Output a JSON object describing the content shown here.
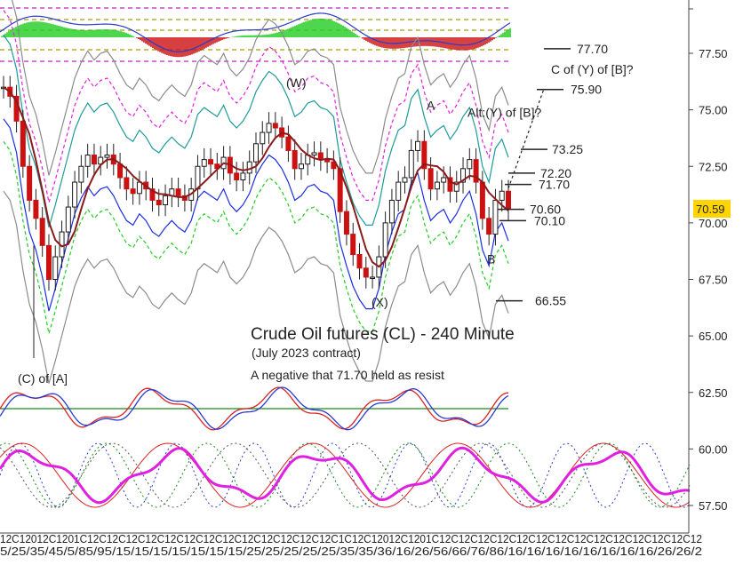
{
  "chart_data": {
    "type": "line",
    "title": "Crude Oil futures (CL) - 240 Minute",
    "subtitle": "(July 2023 contract)",
    "note": "A negative that 71.70 held as resist",
    "last_price": "70.59",
    "ylim": [
      56.5,
      80.0
    ],
    "y_ticks": [
      "77.50",
      "75.00",
      "72.50",
      "70.00",
      "67.50",
      "65.00",
      "62.50",
      "60.00",
      "57.50"
    ],
    "x_tick_labels": "5/25/35/45/5/85/95/15/15/15/15/15/15/15/25/25/25/25/25/35/35/36/16/26/56/66/76/86/16/16/16/16/16/16/16/16/26/26/2",
    "x_tick_top_labels": "12C12012C1201C12C12C12C12C12C12C12C12C12C12C12C12C12C1C12C12012C1201C12C12C12C12C12C12C12C12C12C12C12C12C12C12",
    "price_levels": [
      {
        "label": "77.70",
        "value": 77.7
      },
      {
        "label": "75.90",
        "value": 75.9
      },
      {
        "label": "73.25",
        "value": 73.25
      },
      {
        "label": "72.20",
        "value": 72.2
      },
      {
        "label": "71.70",
        "value": 71.7
      },
      {
        "label": "70.60",
        "value": 70.6
      },
      {
        "label": "70.10",
        "value": 70.1
      },
      {
        "label": "66.55",
        "value": 66.55
      }
    ],
    "wave_labels": [
      {
        "text": "(W)",
        "value": 76.0
      },
      {
        "text": "A",
        "value": 75.0
      },
      {
        "text": "Alt:(Y) of [B]?",
        "value": 74.7
      },
      {
        "text": "C of (Y) of [B]?",
        "value": 76.6
      },
      {
        "text": "B",
        "value": 68.2
      },
      {
        "text": "(X)",
        "value": 66.3
      },
      {
        "text": "(C) of [A]",
        "value": 63.3
      }
    ],
    "series": [
      {
        "name": "",
        "values": [
          76.0,
          75.6,
          74.5,
          72.5,
          71.0,
          70.2,
          69.0,
          67.5,
          68.5,
          69.6,
          70.7,
          71.8,
          72.5,
          73.0,
          72.6,
          72.9,
          73.0,
          72.6,
          72.0,
          71.5,
          71.3,
          71.8,
          71.5,
          71.0,
          70.8,
          71.2,
          71.5,
          71.2,
          71.0,
          71.5,
          72.5,
          72.8,
          72.6,
          72.4,
          72.9,
          72.2,
          71.9,
          72.2,
          72.7,
          73.5,
          74.0,
          74.4,
          74.2,
          73.8,
          73.2,
          72.4,
          72.6,
          73.0,
          73.1,
          72.8,
          72.7,
          72.4,
          70.5,
          69.5,
          68.6,
          68.0,
          67.6,
          67.6,
          68.5,
          70.0,
          71.0,
          71.8,
          72.0,
          73.2,
          73.6,
          72.4,
          71.5,
          71.8,
          72.0,
          71.4,
          71.8,
          72.4,
          72.8,
          71.8,
          70.2,
          69.5,
          71.0,
          71.4,
          70.6
        ]
      }
    ],
    "oscillators": {
      "histogram_levels": [
        2.4,
        3.6,
        0.2,
        -4.0
      ]
    },
    "colors": {
      "up_candle": "#1a1a1a",
      "down_candle": "#cc1111",
      "moving_average": "#8b1a1a",
      "inner_band": "#1a2ee0",
      "middle_band": "#1e9b9b",
      "outer_band": "#8c8c8c",
      "upper_dashed": "#e020e0",
      "lower_dashed": "#22cc22",
      "cycle_main": "#e020e0",
      "hist_positive": "#22cc22",
      "hist_negative": "#cc1111",
      "last_price_box": "#ffd400",
      "osc_red": "#dd2222",
      "osc_blue": "#2a3ad0",
      "osc_green_line": "#1a8a1a"
    }
  }
}
